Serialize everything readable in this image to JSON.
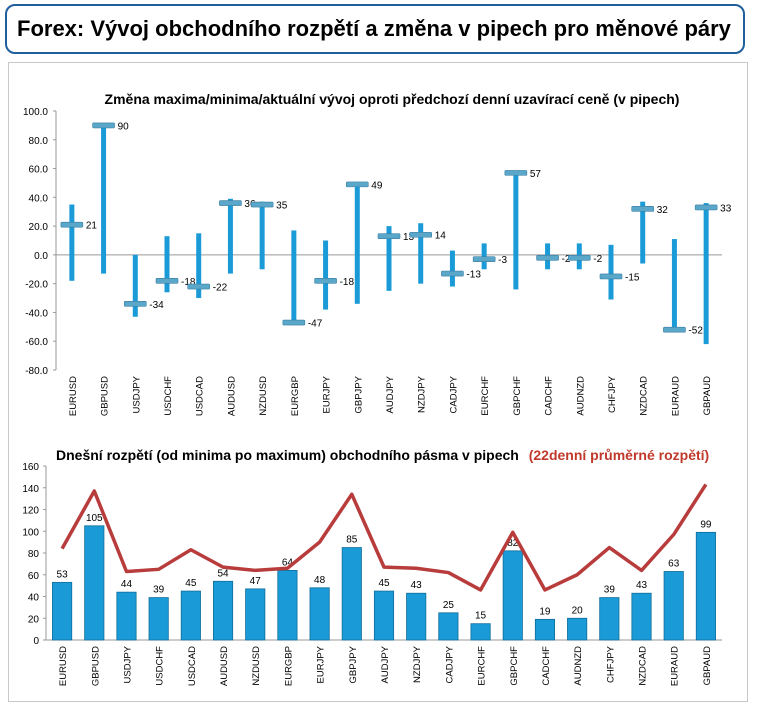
{
  "header": {
    "title": "Forex: Vývoj obchodního rozpětí a změna v pipech pro měnové páry"
  },
  "chart_data": [
    {
      "type": "range-bar",
      "title": "Změna maxima/minima/aktuální vývoj oproti předchozí denní uzavírací ceně (v pipech)",
      "categories": [
        "EURUSD",
        "GBPUSD",
        "USDJPY",
        "USDCHF",
        "USDCAD",
        "AUDUSD",
        "NZDUSD",
        "EURGBP",
        "EURJPY",
        "GBPJPY",
        "AUDJPY",
        "NZDJPY",
        "CADJPY",
        "EURCHF",
        "GBPCHF",
        "CADCHF",
        "AUDNZD",
        "CHFJPY",
        "NZDCAD",
        "EURAUD",
        "GBPAUD"
      ],
      "high": [
        35,
        91,
        0,
        13,
        15,
        39,
        37,
        17,
        10,
        50,
        20,
        22,
        3,
        8,
        58,
        8,
        8,
        7,
        37,
        11,
        36
      ],
      "low": [
        -18,
        -13,
        -43,
        -26,
        -30,
        -13,
        -10,
        -47,
        -38,
        -34,
        -25,
        -20,
        -22,
        -10,
        -24,
        -10,
        -10,
        -31,
        -6,
        -52,
        -62
      ],
      "current": [
        21,
        90,
        -34,
        -18,
        -22,
        36,
        35,
        -47,
        -18,
        49,
        13,
        14,
        -13,
        -3,
        57,
        -2,
        -2,
        -15,
        32,
        -52,
        33
      ],
      "labels": [
        "21",
        "90",
        "-34",
        "-18",
        "-22",
        "36",
        "35",
        "-47",
        "-18",
        "49",
        "13",
        "14",
        "-13",
        "-3",
        "57",
        "-2",
        "-2",
        "-15",
        "32",
        "-52",
        "33"
      ],
      "yticks": [
        "100.0",
        "80.0",
        "60.0",
        "40.0",
        "20.0",
        "0.0",
        "-20.0",
        "-40.0",
        "-60.0",
        "-80.0"
      ],
      "ylim": [
        -80,
        100
      ],
      "colors": {
        "bar": "#1a9bd7",
        "marker": "#5aa7c9"
      }
    },
    {
      "type": "bar+line",
      "title": "Dnešní rozpětí (od minima po maximum) obchodního pásma v pipech",
      "title_red": "(22denní průměrné rozpětí)",
      "categories": [
        "EURUSD",
        "GBPUSD",
        "USDJPY",
        "USDCHF",
        "USDCAD",
        "AUDUSD",
        "NZDUSD",
        "EURGBP",
        "EURJPY",
        "GBPJPY",
        "AUDJPY",
        "NZDJPY",
        "CADJPY",
        "EURCHF",
        "GBPCHF",
        "CADCHF",
        "AUDNZD",
        "CHFJPY",
        "NZDCAD",
        "EURAUD",
        "GBPAUD"
      ],
      "values": [
        53,
        105,
        44,
        39,
        45,
        54,
        47,
        64,
        48,
        85,
        45,
        43,
        25,
        15,
        82,
        19,
        20,
        39,
        43,
        63,
        99
      ],
      "labels": [
        "53",
        "105",
        "44",
        "39",
        "45",
        "54",
        "47",
        "64",
        "48",
        "85",
        "45",
        "43",
        "25",
        "15",
        "82",
        "19",
        "20",
        "39",
        "43",
        "63",
        "99"
      ],
      "avg": [
        84,
        137,
        63,
        65,
        83,
        67,
        64,
        66,
        90,
        134,
        67,
        66,
        62,
        46,
        99,
        46,
        60,
        85,
        64,
        97,
        143
      ],
      "yticks": [
        "160",
        "140",
        "120",
        "100",
        "80",
        "60",
        "40",
        "20",
        "0"
      ],
      "ylim": [
        0,
        160
      ],
      "colors": {
        "bar": "#1a9bd7",
        "line": "#b83c3c",
        "title_red": "#c0392b"
      }
    }
  ]
}
